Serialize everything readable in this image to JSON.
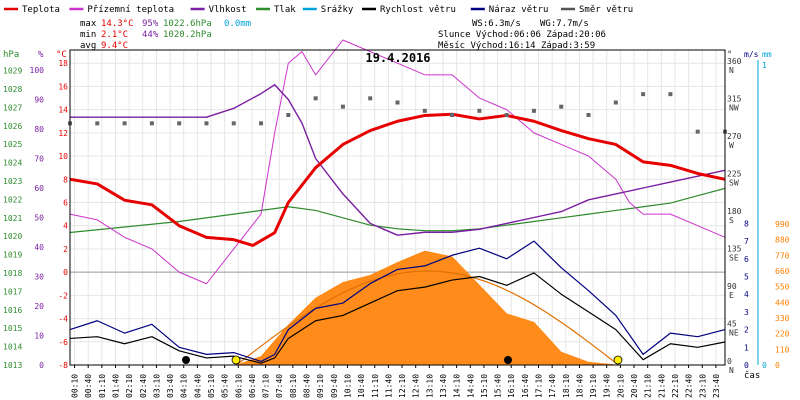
{
  "legend": {
    "items": [
      {
        "key": "temp",
        "label": "Teplota",
        "color": "#e60000"
      },
      {
        "key": "feels",
        "label": "Přízemní teplota",
        "color": "#cc33cc"
      },
      {
        "key": "humidity",
        "label": "Vlhkost",
        "color": "#7a1fa2"
      },
      {
        "key": "pressure",
        "label": "Tlak",
        "color": "#2e8b2e"
      },
      {
        "key": "rain",
        "label": "Srážky",
        "color": "#00a3d9"
      },
      {
        "key": "wind",
        "label": "Rychlost větru",
        "color": "#000000"
      },
      {
        "key": "gust",
        "label": "Náraz větru",
        "color": "#000080"
      },
      {
        "key": "dir",
        "label": "Směr větru",
        "color": "#555555"
      }
    ]
  },
  "stats": {
    "max_label": "max",
    "min_label": "min",
    "avg_label": "avg",
    "max_temp": "14.3°C",
    "max_hum": "95%",
    "max_press": "1022.6hPa",
    "max_rain": "0.0mm",
    "min_temp": "2.1°C",
    "min_hum": "44%",
    "min_press": "1020.2hPa",
    "avg_temp": "9.4°C"
  },
  "info": {
    "ws": "WS:6.3m/s",
    "wg": "WG:7.7m/s",
    "sun": "Slunce Východ:06:06  Západ:20:06",
    "moon": "Měsíc  Východ:16:14  Západ:3:59"
  },
  "chart_data": {
    "type": "line",
    "title": "19.4.2016",
    "x_unit_label": "čas",
    "x_ticks": [
      "00:10",
      "00:40",
      "01:10",
      "01:40",
      "02:10",
      "02:40",
      "03:10",
      "03:40",
      "04:10",
      "04:40",
      "05:10",
      "05:40",
      "06:10",
      "06:40",
      "07:10",
      "07:40",
      "08:10",
      "08:40",
      "09:10",
      "09:40",
      "10:10",
      "10:40",
      "11:10",
      "11:40",
      "12:10",
      "12:40",
      "13:10",
      "13:40",
      "14:10",
      "14:40",
      "15:10",
      "15:40",
      "16:10",
      "16:40",
      "17:10",
      "17:40",
      "18:10",
      "18:40",
      "19:10",
      "19:40",
      "20:10",
      "20:40",
      "21:10",
      "21:40",
      "22:10",
      "22:40",
      "23:10",
      "23:40"
    ],
    "axes": {
      "pressure": {
        "label": "hPa",
        "ticks": [
          "1013",
          "1014",
          "1015",
          "1016",
          "1017",
          "1018",
          "1019",
          "1020",
          "1021",
          "1022",
          "1023",
          "1024",
          "1025",
          "1026",
          "1027",
          "1028",
          "1029"
        ],
        "color": "#2e8b2e"
      },
      "humidity": {
        "label": "%",
        "ticks": [
          "0",
          "10",
          "20",
          "30",
          "40",
          "50",
          "60",
          "70",
          "80",
          "90",
          "100"
        ],
        "color": "#7a1fa2"
      },
      "temperature": {
        "label": "°C",
        "ticks": [
          "-8",
          "-6",
          "-4",
          "-2",
          "0",
          "2",
          "4",
          "6",
          "8",
          "10",
          "12",
          "14",
          "16",
          "18"
        ],
        "color": "#e60000"
      },
      "direction": {
        "label": "°",
        "ticks": [
          "0",
          "45",
          "90",
          "135",
          "180",
          "225",
          "270",
          "315",
          "360"
        ],
        "names": [
          "N",
          "NE",
          "E",
          "SE",
          "S",
          "SW",
          "W",
          "NW",
          "N"
        ],
        "color": "#333333"
      },
      "wind": {
        "label": "m/s",
        "ticks": [
          "0",
          "1",
          "2",
          "3",
          "4",
          "5",
          "6",
          "7",
          "8"
        ],
        "color": "#000080"
      },
      "rain": {
        "label": "mm",
        "ticks": [
          "0",
          "1"
        ],
        "color": "#00a3d9"
      },
      "solar": {
        "ticks": [
          "0",
          "110",
          "220",
          "330",
          "440",
          "550",
          "660",
          "770",
          "880",
          "990"
        ],
        "color": "#ff8000"
      }
    },
    "series": [
      {
        "name": "Teplota",
        "unit": "°C",
        "t": [
          0,
          1,
          2,
          3,
          4,
          5,
          6,
          6.7,
          7.5,
          8,
          9,
          10,
          11,
          12,
          13,
          14,
          15,
          16,
          17,
          18,
          19,
          20,
          21,
          22,
          23,
          24
        ],
        "values": [
          8,
          7.6,
          6.2,
          5.8,
          4,
          3,
          2.8,
          2.3,
          3.4,
          6,
          9,
          11,
          12.2,
          13,
          13.5,
          13.6,
          13.2,
          13.5,
          13,
          12.2,
          11.5,
          11,
          9.5,
          9.2,
          8.5,
          8
        ]
      },
      {
        "name": "Přízemní teplota",
        "unit": "°C",
        "t": [
          0,
          1,
          2,
          3,
          4,
          5,
          6,
          7,
          7.5,
          8,
          8.5,
          9,
          10,
          11,
          12,
          13,
          14,
          15,
          16,
          17,
          18,
          19,
          20,
          20.5,
          21,
          22,
          23,
          24
        ],
        "values": [
          5,
          4.5,
          3,
          2,
          0,
          -1,
          2,
          5,
          12,
          18,
          19,
          17,
          20,
          19,
          18,
          17,
          17,
          15,
          14,
          12,
          11,
          10,
          8,
          6,
          5,
          5,
          4,
          3
        ]
      },
      {
        "name": "Vlhkost",
        "unit": "%",
        "t": [
          0,
          1,
          2,
          3,
          4,
          5,
          6,
          7,
          7.5,
          8,
          8.5,
          9,
          10,
          11,
          12,
          13,
          14,
          15,
          16,
          17,
          18,
          19,
          20,
          21,
          22,
          23,
          24
        ],
        "values": [
          84,
          84,
          84,
          84,
          84,
          84,
          87,
          92,
          95,
          90,
          82,
          70,
          58,
          48,
          44,
          45,
          45,
          46,
          48,
          50,
          52,
          56,
          58,
          60,
          62,
          64,
          66
        ]
      },
      {
        "name": "Tlak",
        "unit": "hPa",
        "t": [
          0,
          2,
          4,
          6,
          8,
          9,
          10,
          11,
          12,
          13,
          14,
          15,
          16,
          17,
          18,
          19,
          20,
          21,
          22,
          23,
          24
        ],
        "values": [
          1020.2,
          1020.5,
          1020.8,
          1021.2,
          1021.6,
          1021.4,
          1021.0,
          1020.6,
          1020.4,
          1020.3,
          1020.3,
          1020.4,
          1020.6,
          1020.8,
          1021.0,
          1021.2,
          1021.4,
          1021.6,
          1021.8,
          1022.2,
          1022.6
        ]
      },
      {
        "name": "Srážky",
        "unit": "mm",
        "t": [
          0,
          24
        ],
        "values": [
          0,
          0
        ]
      },
      {
        "name": "Rychlost větru",
        "unit": "m/s",
        "t": [
          0,
          1,
          2,
          3,
          4,
          5,
          6,
          7,
          7.5,
          8,
          9,
          10,
          11,
          12,
          13,
          14,
          15,
          16,
          17,
          18,
          19,
          20,
          21,
          22,
          23,
          24
        ],
        "values": [
          1.5,
          1.6,
          1.2,
          1.6,
          0.8,
          0.4,
          0.5,
          0.1,
          0.4,
          1.5,
          2.5,
          2.8,
          3.5,
          4.2,
          4.4,
          4.8,
          5.0,
          4.5,
          5.2,
          4.0,
          3.0,
          2.0,
          0.3,
          1.2,
          1.0,
          1.3
        ]
      },
      {
        "name": "Náraz větru",
        "unit": "m/s",
        "t": [
          0,
          1,
          2,
          3,
          4,
          5,
          6,
          7,
          7.5,
          8,
          9,
          10,
          11,
          12,
          13,
          14,
          15,
          16,
          17,
          18,
          19,
          20,
          21,
          22,
          23,
          24
        ],
        "values": [
          2.0,
          2.5,
          1.8,
          2.3,
          1.0,
          0.6,
          0.7,
          0.2,
          0.6,
          2.0,
          3.2,
          3.5,
          4.6,
          5.4,
          5.6,
          6.2,
          6.6,
          6.0,
          7.0,
          5.5,
          4.2,
          2.8,
          0.6,
          1.8,
          1.6,
          2.0
        ]
      },
      {
        "name": "Směr větru",
        "unit": "°",
        "t": [
          0,
          1,
          2,
          3,
          4,
          5,
          6,
          7,
          8,
          9,
          10,
          11,
          12,
          13,
          14,
          15,
          16,
          17,
          18,
          19,
          20,
          21,
          22,
          23,
          24
        ],
        "values": [
          290,
          290,
          290,
          290,
          290,
          290,
          290,
          290,
          300,
          320,
          310,
          320,
          315,
          305,
          300,
          305,
          300,
          305,
          310,
          300,
          315,
          325,
          325,
          280,
          280
        ]
      },
      {
        "name": "Sluneční záření",
        "unit": "W/m²",
        "t": [
          6.1,
          7,
          8,
          9,
          10,
          11,
          12,
          13,
          14,
          15,
          16,
          17,
          18,
          19,
          20.1
        ],
        "values": [
          0,
          60,
          280,
          470,
          580,
          630,
          720,
          800,
          760,
          560,
          360,
          300,
          90,
          20,
          0
        ]
      }
    ]
  }
}
